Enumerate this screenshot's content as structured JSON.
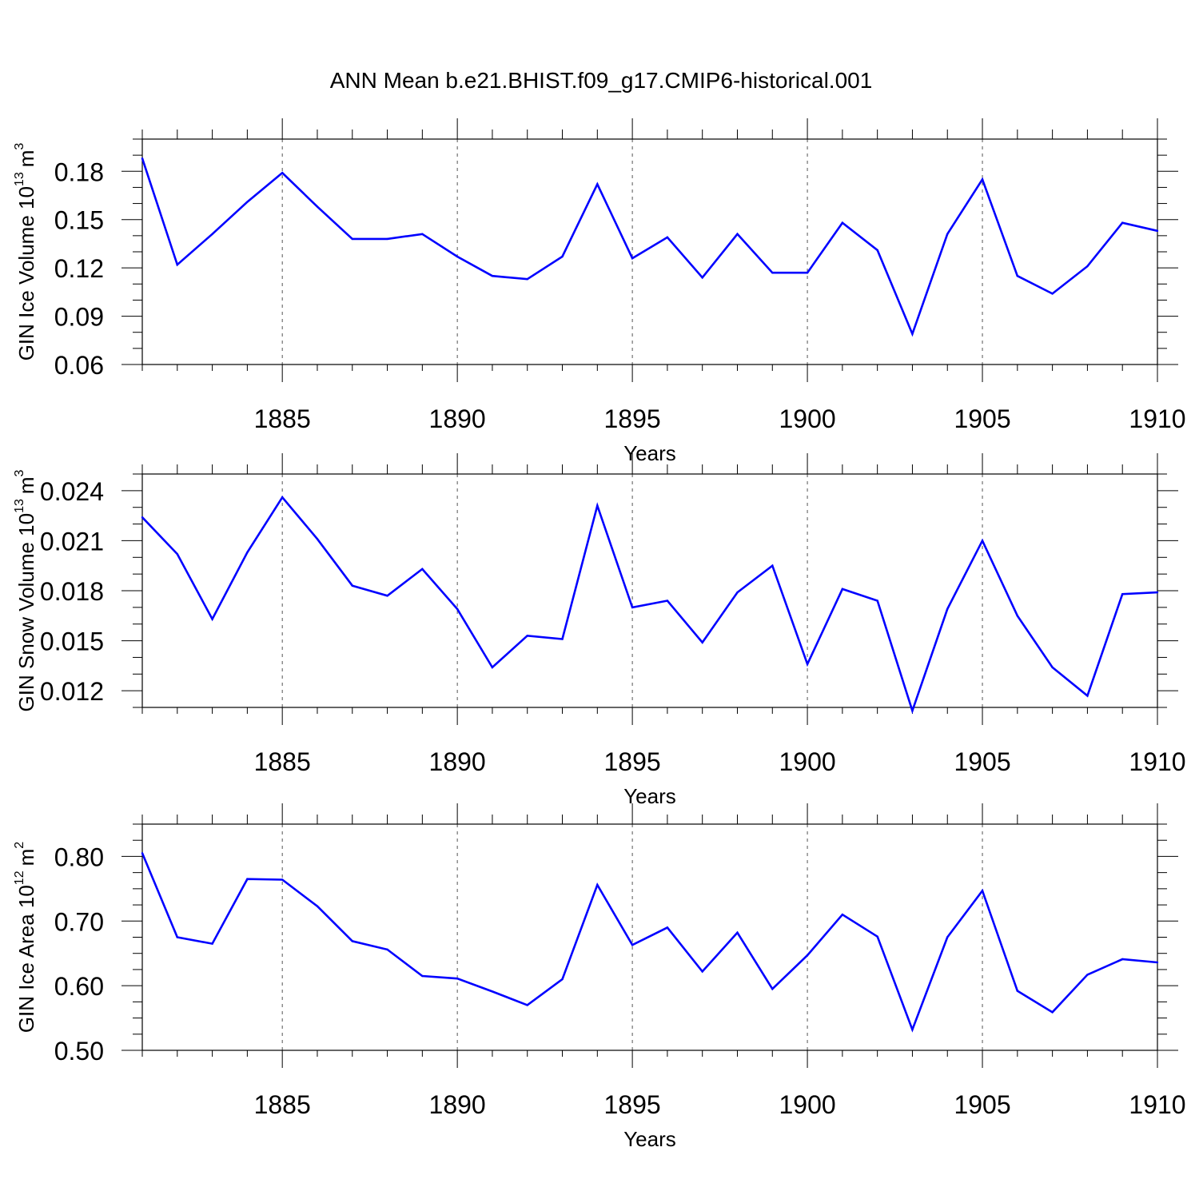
{
  "title": "ANN Mean b.e21.BHIST.f09_g17.CMIP6-historical.001",
  "colors": {
    "line": "#0000ff",
    "axis": "#000000",
    "grid": "#555555"
  },
  "chart_data": [
    {
      "type": "line",
      "ylabel": "GIN Ice Volume 10",
      "ylabel_exp": "13",
      "ylabel_unit": "m",
      "ylabel_unit_exp": "3",
      "xlabel": "Years",
      "xlim": [
        1881,
        1910
      ],
      "ylim": [
        0.06,
        0.2
      ],
      "ytick_values": [
        0.06,
        0.09,
        0.12,
        0.15,
        0.18
      ],
      "ytick_labels": [
        "0.06",
        "0.09",
        "0.12",
        "0.15",
        "0.18"
      ],
      "yminor_step": 0.01,
      "xtick_values": [
        1885,
        1890,
        1895,
        1900,
        1905,
        1910
      ],
      "xtick_labels": [
        "1885",
        "1890",
        "1895",
        "1900",
        "1905",
        "1910"
      ],
      "x": [
        1881,
        1882,
        1883,
        1884,
        1885,
        1886,
        1887,
        1888,
        1889,
        1890,
        1891,
        1892,
        1893,
        1894,
        1895,
        1896,
        1897,
        1898,
        1899,
        1900,
        1901,
        1902,
        1903,
        1904,
        1905,
        1906,
        1907,
        1908,
        1909,
        1910
      ],
      "series": [
        {
          "name": "GIN Ice Volume",
          "values": [
            0.188,
            0.122,
            0.141,
            0.161,
            0.179,
            0.158,
            0.138,
            0.138,
            0.141,
            0.127,
            0.115,
            0.113,
            0.127,
            0.172,
            0.126,
            0.139,
            0.114,
            0.141,
            0.117,
            0.117,
            0.148,
            0.131,
            0.079,
            0.141,
            0.175,
            0.115,
            0.104,
            0.121,
            0.148,
            0.143
          ]
        }
      ]
    },
    {
      "type": "line",
      "ylabel": "GIN Snow Volume 10",
      "ylabel_exp": "13",
      "ylabel_unit": "m",
      "ylabel_unit_exp": "3",
      "xlabel": "Years",
      "xlim": [
        1881,
        1910
      ],
      "ylim": [
        0.011,
        0.025
      ],
      "ytick_values": [
        0.012,
        0.015,
        0.018,
        0.021,
        0.024
      ],
      "ytick_labels": [
        "0.012",
        "0.015",
        "0.018",
        "0.021",
        "0.024"
      ],
      "yminor_step": 0.001,
      "xtick_values": [
        1885,
        1890,
        1895,
        1900,
        1905,
        1910
      ],
      "xtick_labels": [
        "1885",
        "1890",
        "1895",
        "1900",
        "1905",
        "1910"
      ],
      "x": [
        1881,
        1882,
        1883,
        1884,
        1885,
        1886,
        1887,
        1888,
        1889,
        1890,
        1891,
        1892,
        1893,
        1894,
        1895,
        1896,
        1897,
        1898,
        1899,
        1900,
        1901,
        1902,
        1903,
        1904,
        1905,
        1906,
        1907,
        1908,
        1909,
        1910
      ],
      "series": [
        {
          "name": "GIN Snow Volume",
          "values": [
            0.0224,
            0.0202,
            0.0163,
            0.0203,
            0.0236,
            0.0211,
            0.0183,
            0.0177,
            0.0193,
            0.0169,
            0.0134,
            0.0153,
            0.0151,
            0.0231,
            0.017,
            0.0174,
            0.0149,
            0.0179,
            0.0195,
            0.0136,
            0.0181,
            0.0174,
            0.0108,
            0.0169,
            0.021,
            0.0165,
            0.0134,
            0.0117,
            0.0178,
            0.0179
          ]
        }
      ]
    },
    {
      "type": "line",
      "ylabel": "GIN Ice Area 10",
      "ylabel_exp": "12",
      "ylabel_unit": "m",
      "ylabel_unit_exp": "2",
      "xlabel": "Years",
      "xlim": [
        1881,
        1910
      ],
      "ylim": [
        0.5,
        0.85
      ],
      "ytick_values": [
        0.5,
        0.6,
        0.7,
        0.8
      ],
      "ytick_labels": [
        "0.50",
        "0.60",
        "0.70",
        "0.80"
      ],
      "yminor_step": 0.025,
      "xtick_values": [
        1885,
        1890,
        1895,
        1900,
        1905,
        1910
      ],
      "xtick_labels": [
        "1885",
        "1890",
        "1895",
        "1900",
        "1905",
        "1910"
      ],
      "x": [
        1881,
        1882,
        1883,
        1884,
        1885,
        1886,
        1887,
        1888,
        1889,
        1890,
        1891,
        1892,
        1893,
        1894,
        1895,
        1896,
        1897,
        1898,
        1899,
        1900,
        1901,
        1902,
        1903,
        1904,
        1905,
        1906,
        1907,
        1908,
        1909,
        1910
      ],
      "series": [
        {
          "name": "GIN Ice Area",
          "values": [
            0.805,
            0.675,
            0.665,
            0.765,
            0.764,
            0.723,
            0.669,
            0.656,
            0.615,
            0.611,
            0.591,
            0.57,
            0.61,
            0.756,
            0.663,
            0.69,
            0.622,
            0.682,
            0.595,
            0.647,
            0.71,
            0.676,
            0.532,
            0.675,
            0.747,
            0.592,
            0.559,
            0.617,
            0.641,
            0.636
          ]
        }
      ]
    }
  ]
}
